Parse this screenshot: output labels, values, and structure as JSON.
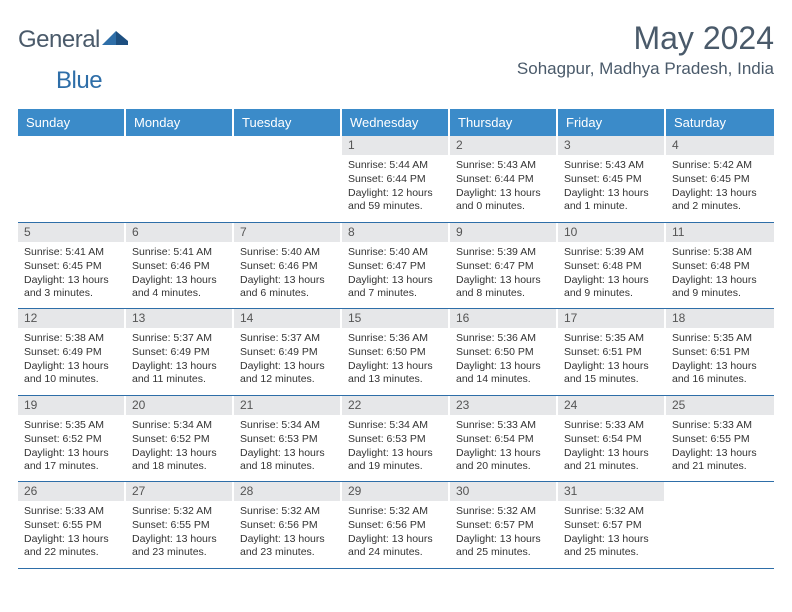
{
  "logo": {
    "textA": "General",
    "textB": "Blue"
  },
  "title": "May 2024",
  "location": "Sohagpur, Madhya Pradesh, India",
  "colors": {
    "header_bg": "#3b8bc9",
    "header_text": "#ffffff",
    "daynum_bg": "#e6e7e9",
    "border": "#2e6ea8",
    "body_text": "#333333",
    "title_text": "#4a5a6a",
    "logo_accent": "#2e6ea8"
  },
  "daynames": [
    "Sunday",
    "Monday",
    "Tuesday",
    "Wednesday",
    "Thursday",
    "Friday",
    "Saturday"
  ],
  "weeks": [
    [
      {
        "empty": true
      },
      {
        "empty": true
      },
      {
        "empty": true
      },
      {
        "day": "1",
        "sunrise": "Sunrise: 5:44 AM",
        "sunset": "Sunset: 6:44 PM",
        "daylight": "Daylight: 12 hours and 59 minutes."
      },
      {
        "day": "2",
        "sunrise": "Sunrise: 5:43 AM",
        "sunset": "Sunset: 6:44 PM",
        "daylight": "Daylight: 13 hours and 0 minutes."
      },
      {
        "day": "3",
        "sunrise": "Sunrise: 5:43 AM",
        "sunset": "Sunset: 6:45 PM",
        "daylight": "Daylight: 13 hours and 1 minute."
      },
      {
        "day": "4",
        "sunrise": "Sunrise: 5:42 AM",
        "sunset": "Sunset: 6:45 PM",
        "daylight": "Daylight: 13 hours and 2 minutes."
      }
    ],
    [
      {
        "day": "5",
        "sunrise": "Sunrise: 5:41 AM",
        "sunset": "Sunset: 6:45 PM",
        "daylight": "Daylight: 13 hours and 3 minutes."
      },
      {
        "day": "6",
        "sunrise": "Sunrise: 5:41 AM",
        "sunset": "Sunset: 6:46 PM",
        "daylight": "Daylight: 13 hours and 4 minutes."
      },
      {
        "day": "7",
        "sunrise": "Sunrise: 5:40 AM",
        "sunset": "Sunset: 6:46 PM",
        "daylight": "Daylight: 13 hours and 6 minutes."
      },
      {
        "day": "8",
        "sunrise": "Sunrise: 5:40 AM",
        "sunset": "Sunset: 6:47 PM",
        "daylight": "Daylight: 13 hours and 7 minutes."
      },
      {
        "day": "9",
        "sunrise": "Sunrise: 5:39 AM",
        "sunset": "Sunset: 6:47 PM",
        "daylight": "Daylight: 13 hours and 8 minutes."
      },
      {
        "day": "10",
        "sunrise": "Sunrise: 5:39 AM",
        "sunset": "Sunset: 6:48 PM",
        "daylight": "Daylight: 13 hours and 9 minutes."
      },
      {
        "day": "11",
        "sunrise": "Sunrise: 5:38 AM",
        "sunset": "Sunset: 6:48 PM",
        "daylight": "Daylight: 13 hours and 9 minutes."
      }
    ],
    [
      {
        "day": "12",
        "sunrise": "Sunrise: 5:38 AM",
        "sunset": "Sunset: 6:49 PM",
        "daylight": "Daylight: 13 hours and 10 minutes."
      },
      {
        "day": "13",
        "sunrise": "Sunrise: 5:37 AM",
        "sunset": "Sunset: 6:49 PM",
        "daylight": "Daylight: 13 hours and 11 minutes."
      },
      {
        "day": "14",
        "sunrise": "Sunrise: 5:37 AM",
        "sunset": "Sunset: 6:49 PM",
        "daylight": "Daylight: 13 hours and 12 minutes."
      },
      {
        "day": "15",
        "sunrise": "Sunrise: 5:36 AM",
        "sunset": "Sunset: 6:50 PM",
        "daylight": "Daylight: 13 hours and 13 minutes."
      },
      {
        "day": "16",
        "sunrise": "Sunrise: 5:36 AM",
        "sunset": "Sunset: 6:50 PM",
        "daylight": "Daylight: 13 hours and 14 minutes."
      },
      {
        "day": "17",
        "sunrise": "Sunrise: 5:35 AM",
        "sunset": "Sunset: 6:51 PM",
        "daylight": "Daylight: 13 hours and 15 minutes."
      },
      {
        "day": "18",
        "sunrise": "Sunrise: 5:35 AM",
        "sunset": "Sunset: 6:51 PM",
        "daylight": "Daylight: 13 hours and 16 minutes."
      }
    ],
    [
      {
        "day": "19",
        "sunrise": "Sunrise: 5:35 AM",
        "sunset": "Sunset: 6:52 PM",
        "daylight": "Daylight: 13 hours and 17 minutes."
      },
      {
        "day": "20",
        "sunrise": "Sunrise: 5:34 AM",
        "sunset": "Sunset: 6:52 PM",
        "daylight": "Daylight: 13 hours and 18 minutes."
      },
      {
        "day": "21",
        "sunrise": "Sunrise: 5:34 AM",
        "sunset": "Sunset: 6:53 PM",
        "daylight": "Daylight: 13 hours and 18 minutes."
      },
      {
        "day": "22",
        "sunrise": "Sunrise: 5:34 AM",
        "sunset": "Sunset: 6:53 PM",
        "daylight": "Daylight: 13 hours and 19 minutes."
      },
      {
        "day": "23",
        "sunrise": "Sunrise: 5:33 AM",
        "sunset": "Sunset: 6:54 PM",
        "daylight": "Daylight: 13 hours and 20 minutes."
      },
      {
        "day": "24",
        "sunrise": "Sunrise: 5:33 AM",
        "sunset": "Sunset: 6:54 PM",
        "daylight": "Daylight: 13 hours and 21 minutes."
      },
      {
        "day": "25",
        "sunrise": "Sunrise: 5:33 AM",
        "sunset": "Sunset: 6:55 PM",
        "daylight": "Daylight: 13 hours and 21 minutes."
      }
    ],
    [
      {
        "day": "26",
        "sunrise": "Sunrise: 5:33 AM",
        "sunset": "Sunset: 6:55 PM",
        "daylight": "Daylight: 13 hours and 22 minutes."
      },
      {
        "day": "27",
        "sunrise": "Sunrise: 5:32 AM",
        "sunset": "Sunset: 6:55 PM",
        "daylight": "Daylight: 13 hours and 23 minutes."
      },
      {
        "day": "28",
        "sunrise": "Sunrise: 5:32 AM",
        "sunset": "Sunset: 6:56 PM",
        "daylight": "Daylight: 13 hours and 23 minutes."
      },
      {
        "day": "29",
        "sunrise": "Sunrise: 5:32 AM",
        "sunset": "Sunset: 6:56 PM",
        "daylight": "Daylight: 13 hours and 24 minutes."
      },
      {
        "day": "30",
        "sunrise": "Sunrise: 5:32 AM",
        "sunset": "Sunset: 6:57 PM",
        "daylight": "Daylight: 13 hours and 25 minutes."
      },
      {
        "day": "31",
        "sunrise": "Sunrise: 5:32 AM",
        "sunset": "Sunset: 6:57 PM",
        "daylight": "Daylight: 13 hours and 25 minutes."
      },
      {
        "empty": true
      }
    ]
  ]
}
